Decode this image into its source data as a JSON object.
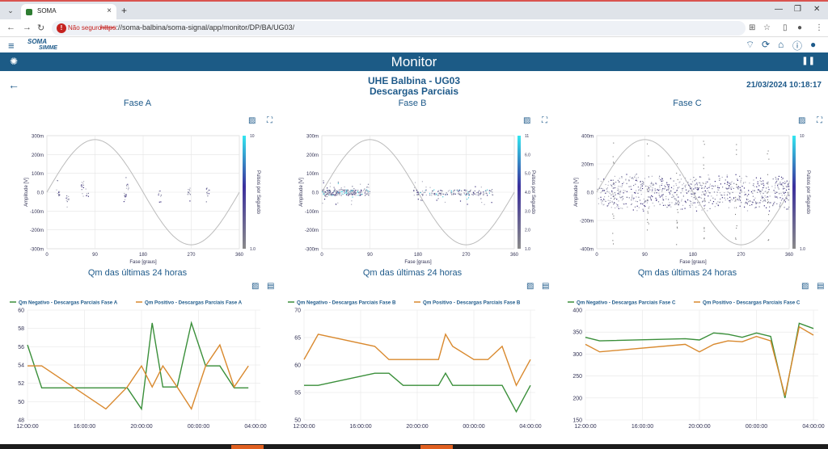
{
  "browser": {
    "tab_title": "SOMA",
    "not_secure": "Não seguro",
    "url_scheme": "https",
    "url_rest": "://soma-balbina/soma-signal/app/monitor/DP/BA/UG03/"
  },
  "app": {
    "logo_top": "SOMA",
    "logo_bottom": "SIMME",
    "page_title": "Monitor",
    "heading": "UHE Balbina - UG03",
    "subheading": "Descargas Parciais",
    "timestamp": "21/03/2024 10:18:17"
  },
  "colors": {
    "brand": "#1c5b86",
    "qm_negative": "#3a8f3a",
    "qm_positive": "#d9892e"
  },
  "phases": [
    {
      "title": "Fase A",
      "trend_title": "Qm das últimas 24 horas",
      "prpd": {
        "y_ticks": [
          "300m",
          "200m",
          "100m",
          "0.0",
          "-100m",
          "-200m",
          "-300m"
        ],
        "x_ticks": [
          "0",
          "90",
          "180",
          "270",
          "360"
        ],
        "xlabel": "Fase [graus]",
        "ylabel": "Amplitude [V]",
        "colorbar_label": "Pulsos por Segundo",
        "colorbar_ticks": [
          "10",
          "1.0"
        ]
      },
      "trend": {
        "legend": [
          "Qm Negativo - Descargas Parciais Fase A",
          "Qm Positivo - Descargas Parciais Fase A"
        ],
        "y_ticks": [
          "60",
          "58",
          "56",
          "54",
          "52",
          "50",
          "48"
        ],
        "x_ticks": [
          "12:00:00",
          "16:00:00",
          "20:00:00",
          "00:00:00",
          "04:00:00"
        ]
      }
    },
    {
      "title": "Fase B",
      "trend_title": "Qm das últimas 24 horas",
      "prpd": {
        "y_ticks": [
          "300m",
          "200m",
          "100m",
          "0.0",
          "-100m",
          "-200m",
          "-300m"
        ],
        "x_ticks": [
          "0",
          "90",
          "180",
          "270",
          "360"
        ],
        "xlabel": "Fase [graus]",
        "ylabel": "Amplitude [V]",
        "colorbar_label": "Pulsos por Segundo",
        "colorbar_ticks": [
          "11",
          "6.0",
          "5.0",
          "4.0",
          "3.0",
          "2.0",
          "1.0"
        ]
      },
      "trend": {
        "legend": [
          "Qm Negativo - Descargas Parciais Fase B",
          "Qm Positivo - Descargas Parciais Fase B"
        ],
        "y_ticks": [
          "70",
          "65",
          "60",
          "55",
          "50"
        ],
        "x_ticks": [
          "12:00:00",
          "16:00:00",
          "20:00:00",
          "00:00:00",
          "04:00:00"
        ]
      }
    },
    {
      "title": "Fase C",
      "trend_title": "Qm das últimas 24 horas",
      "prpd": {
        "y_ticks": [
          "400m",
          "200m",
          "0.0",
          "-200m",
          "-400m"
        ],
        "x_ticks": [
          "0",
          "90",
          "180",
          "270",
          "360"
        ],
        "xlabel": "Fase [graus]",
        "ylabel": "Amplitude [V]",
        "colorbar_label": "Pulsos por Segundo",
        "colorbar_ticks": [
          "10",
          "1.0"
        ]
      },
      "trend": {
        "legend": [
          "Qm Negativo - Descargas Parciais Fase C",
          "Qm Positivo - Descargas Parciais Fase C"
        ],
        "y_ticks": [
          "400",
          "350",
          "300",
          "250",
          "200",
          "150"
        ],
        "x_ticks": [
          "12:00:00",
          "16:00:00",
          "20:00:00",
          "00:00:00",
          "04:00:00"
        ]
      }
    }
  ],
  "chart_data": [
    {
      "type": "line",
      "title": "Qm das últimas 24 horas",
      "xlabel": "",
      "ylabel": "",
      "x": [
        "12:00",
        "13:00",
        "17:30",
        "19:00",
        "20:00",
        "20:45",
        "21:30",
        "22:30",
        "23:30",
        "00:30",
        "01:30",
        "02:30",
        "03:30"
      ],
      "ylim": [
        48,
        60
      ],
      "series": [
        {
          "name": "Qm Negativo - Descargas Parciais Fase A",
          "values": [
            56.2,
            51.5,
            51.5,
            51.5,
            49.2,
            58.6,
            51.6,
            51.6,
            58.6,
            53.9,
            53.9,
            51.5,
            51.5
          ]
        },
        {
          "name": "Qm Positivo - Descargas Parciais Fase A",
          "values": [
            53.9,
            53.9,
            49.2,
            51.6,
            53.9,
            51.6,
            53.9,
            51.6,
            49.2,
            53.9,
            56.2,
            51.6,
            53.9
          ]
        }
      ]
    },
    {
      "type": "line",
      "title": "Qm das últimas 24 horas",
      "xlabel": "",
      "ylabel": "",
      "x": [
        "12:00",
        "13:00",
        "17:00",
        "18:00",
        "19:00",
        "20:00",
        "21:00",
        "21:30",
        "22:00",
        "22:30",
        "00:00",
        "01:00",
        "02:00",
        "03:00",
        "04:00"
      ],
      "ylim": [
        50,
        70
      ],
      "series": [
        {
          "name": "Qm Negativo - Descargas Parciais Fase B",
          "values": [
            56.3,
            56.3,
            58.5,
            58.5,
            56.3,
            56.3,
            56.3,
            56.3,
            58.5,
            56.3,
            56.3,
            56.3,
            56.3,
            51.5,
            56.3
          ]
        },
        {
          "name": "Qm Positivo - Descargas Parciais Fase B",
          "values": [
            61,
            65.6,
            63.4,
            61,
            61,
            61,
            61,
            61,
            65.6,
            63.4,
            61,
            61,
            63.4,
            56.3,
            61
          ]
        }
      ]
    },
    {
      "type": "line",
      "title": "Qm das últimas 24 horas",
      "xlabel": "",
      "ylabel": "",
      "x": [
        "12:00",
        "13:00",
        "19:00",
        "20:00",
        "21:00",
        "22:00",
        "23:00",
        "00:00",
        "01:00",
        "02:00",
        "03:00",
        "04:00"
      ],
      "ylim": [
        150,
        400
      ],
      "series": [
        {
          "name": "Qm Negativo - Descargas Parciais Fase C",
          "values": [
            338,
            330,
            335,
            332,
            348,
            345,
            338,
            348,
            340,
            200,
            370,
            358
          ]
        },
        {
          "name": "Qm Positivo - Descargas Parciais Fase C",
          "values": [
            322,
            305,
            322,
            305,
            322,
            330,
            328,
            340,
            330,
            205,
            362,
            343
          ]
        }
      ]
    }
  ]
}
